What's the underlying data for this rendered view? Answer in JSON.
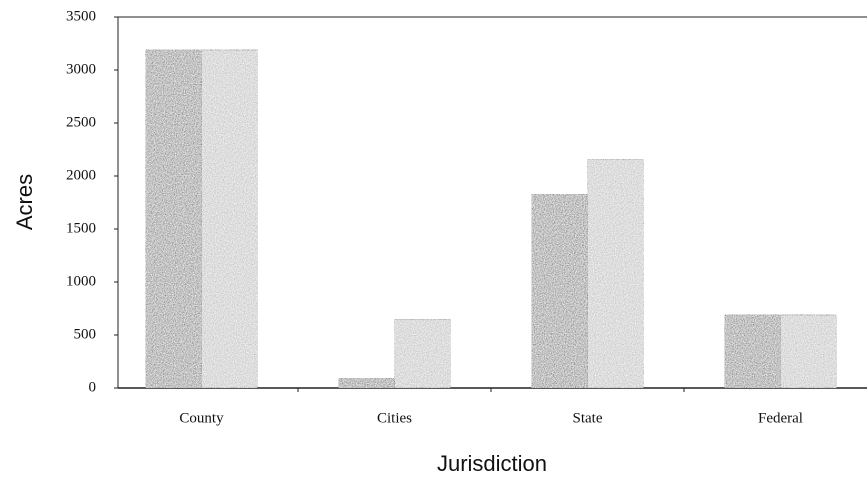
{
  "chart_data": {
    "type": "bar",
    "x_label": "Jurisdiction",
    "y_label": "Acres",
    "categories": [
      "County",
      "Cities",
      "State",
      "Federal"
    ],
    "series": [
      {
        "color": "#5c5c5c",
        "values": [
          3190,
          90,
          1830,
          690
        ]
      },
      {
        "color": "#b4b4b4",
        "values": [
          3190,
          650,
          2160,
          690
        ]
      }
    ],
    "ylim": [
      0,
      3500
    ],
    "yticks": [
      0,
      500,
      1000,
      1500,
      2000,
      2500,
      3000,
      3500
    ]
  }
}
